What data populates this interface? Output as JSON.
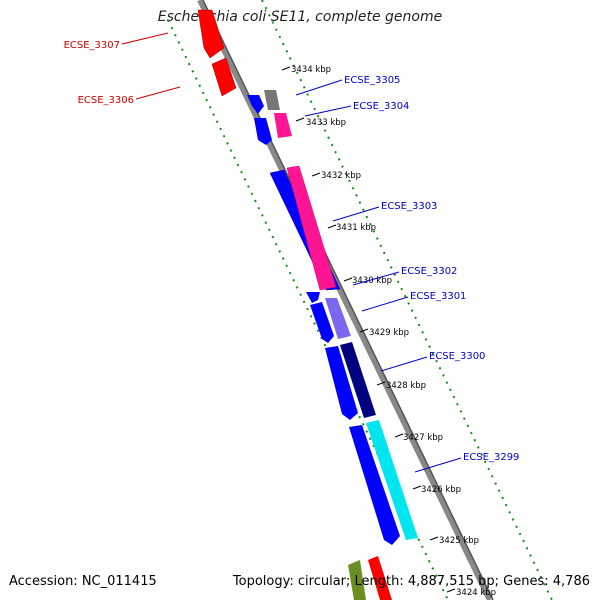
{
  "title": "Escherichia coli SE11, complete genome",
  "footer": {
    "accession": "Accession: NC_011415",
    "summary": "Topology: circular; Length: 4,887,515 bp; Genes: 4,786"
  },
  "colors": {
    "backbone": "#888888",
    "guide": "#1a8a1a",
    "left_label": "#cc0000",
    "right_label": "#0000cc"
  },
  "ticks": [
    "3434 kbp",
    "3433 kbp",
    "3432 kbp",
    "3431 kbp",
    "3430 kbp",
    "3429 kbp",
    "3428 kbp",
    "3427 kbp",
    "3426 kbp",
    "3425 kbp",
    "3424 kbp"
  ],
  "left_genes": [
    {
      "label": "ECSE_3307",
      "color": "#ff0000"
    },
    {
      "label": "ECSE_3306",
      "color": "#ff0000"
    }
  ],
  "right_genes": [
    {
      "label": "ECSE_3305",
      "color": "#0000ff"
    },
    {
      "label": "ECSE_3304",
      "color": "#ff1493"
    },
    {
      "label": "ECSE_3303",
      "color": "#ff1493"
    },
    {
      "label": "ECSE_3302",
      "color": "#0000ff"
    },
    {
      "label": "ECSE_3301",
      "color": "#7b68ee"
    },
    {
      "label": "ECSE_3300",
      "color": "#000080"
    },
    {
      "label": "ECSE_3299",
      "color": "#00ffff"
    }
  ]
}
